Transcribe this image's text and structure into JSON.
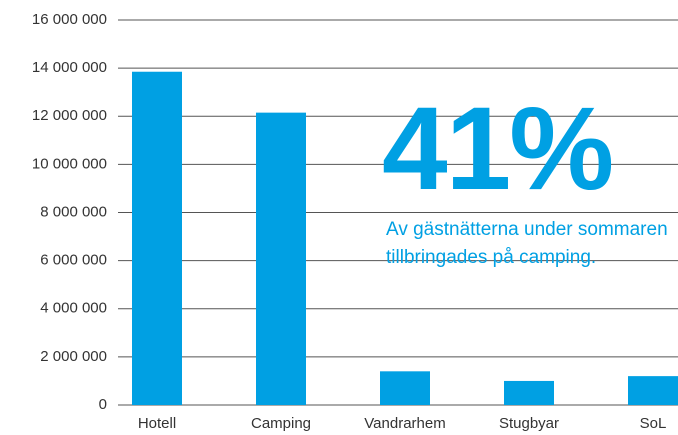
{
  "chart_data": {
    "type": "bar",
    "categories": [
      "Hotell",
      "Camping",
      "Vandrarhem",
      "Stugbyar",
      "SoL"
    ],
    "values": [
      13850000,
      12150000,
      1400000,
      1000000,
      1200000
    ],
    "color": "#00a0e3",
    "ylim": [
      0,
      16000000
    ],
    "yticks": [
      0,
      {
        "value": 2000000,
        "label": "2 000 000"
      },
      {
        "value": 4000000,
        "label": "4 000 000"
      },
      {
        "value": 6000000,
        "label": "6 000 000"
      },
      {
        "value": 8000000,
        "label": "8 000 000"
      },
      {
        "value": 10000000,
        "label": "10 000 000"
      },
      {
        "value": 12000000,
        "label": "12 000 000"
      },
      {
        "value": 14000000,
        "label": "14 000 000"
      },
      {
        "value": 16000000,
        "label": "16 000 000"
      }
    ],
    "grid": true,
    "annotation": "41%",
    "annotation_text": "Av gästnätterna under sommaren tillbringades på camping."
  }
}
